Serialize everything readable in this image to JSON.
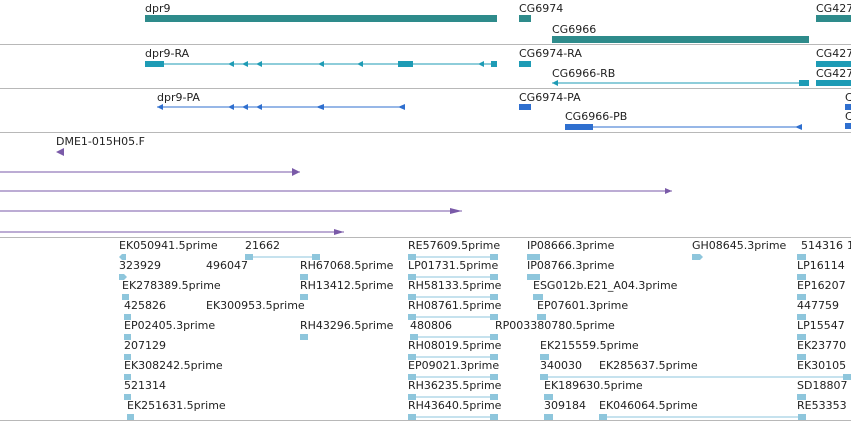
{
  "colors": {
    "gene": "#2e8b8b",
    "transcript": "#1e9bb5",
    "cds": "#2f6fcf",
    "est": "#7a5aa8",
    "clone": "#8ec6dc",
    "divider": "#b8b8b8"
  },
  "gene_track": {
    "genes": [
      {
        "name": "dpr9"
      },
      {
        "name": "CG6974"
      },
      {
        "name": "CG6966"
      },
      {
        "name": "CG427"
      }
    ]
  },
  "transcript_track": {
    "transcripts": [
      {
        "name": "dpr9-RA"
      },
      {
        "name": "CG6974-RA"
      },
      {
        "name": "CG6966-RB"
      },
      {
        "name": "CG427"
      },
      {
        "name": "CG427"
      }
    ]
  },
  "protein_track": {
    "items": [
      {
        "name": "dpr9-PA"
      },
      {
        "name": "CG6974-PA"
      },
      {
        "name": "CG6966-PB"
      },
      {
        "name": "C"
      },
      {
        "name": "C"
      }
    ]
  },
  "est_track": {
    "items": [
      {
        "name": "DME1-015H05.F"
      }
    ]
  },
  "clone_track": {
    "labels": [
      "EK050941.5prime",
      "21662",
      "RE57609.5prime",
      "IP08666.3prime",
      "GH08645.3prime",
      "514316",
      "1",
      "323929",
      "496047",
      "RH67068.5prime",
      "LP01731.5prime",
      "IP08766.3prime",
      "LP16114",
      "EK278389.5prime",
      "RH13412.5prime",
      "RH58133.5prime",
      "ESG012b.E21_A04.3prime",
      "EP16207",
      "425826",
      "EK300953.5prime",
      "RH08761.5prime",
      "EP07601.3prime",
      "447759",
      "EP02405.3prime",
      "RH43296.5prime",
      "480806",
      "RP003380780.5prime",
      "LP15547",
      "207129",
      "RH08019.5prime",
      "EK215559.5prime",
      "EK23770",
      "EK308242.5prime",
      "EP09021.3prime",
      "340030",
      "EK285637.5prime",
      "EK30105",
      "521314",
      "RH36235.5prime",
      "EK189630.5prime",
      "SD18807",
      "EK251631.5prime",
      "RH43640.5prime",
      "309184",
      "EK046064.5prime",
      "RE53353"
    ]
  }
}
